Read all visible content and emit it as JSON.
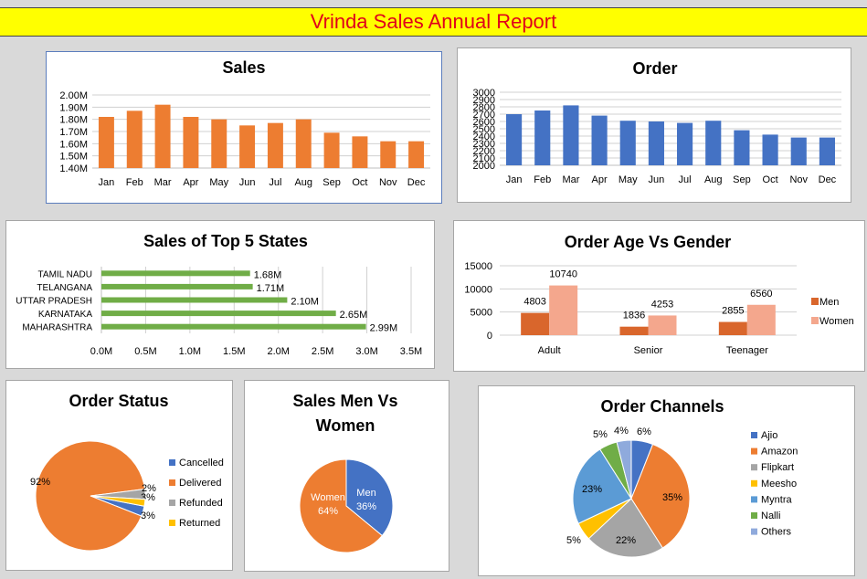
{
  "title": "Vrinda Sales Annual Report",
  "chart_data": [
    {
      "id": "sales",
      "type": "bar",
      "title": "Sales",
      "categories": [
        "Jan",
        "Feb",
        "Mar",
        "Apr",
        "May",
        "Jun",
        "Jul",
        "Aug",
        "Sep",
        "Oct",
        "Nov",
        "Dec"
      ],
      "values": [
        1.82,
        1.87,
        1.92,
        1.82,
        1.8,
        1.75,
        1.77,
        1.8,
        1.69,
        1.66,
        1.62,
        1.62
      ],
      "ylim": [
        1.4,
        2.0
      ],
      "yticks": [
        "1.40M",
        "1.50M",
        "1.60M",
        "1.70M",
        "1.80M",
        "1.90M",
        "2.00M"
      ],
      "color": "#ed7d31",
      "grid": true
    },
    {
      "id": "order",
      "type": "bar",
      "title": "Order",
      "categories": [
        "Jan",
        "Feb",
        "Mar",
        "Apr",
        "May",
        "Jun",
        "Jul",
        "Aug",
        "Sep",
        "Oct",
        "Nov",
        "Dec"
      ],
      "values": [
        2700,
        2750,
        2820,
        2680,
        2610,
        2600,
        2580,
        2610,
        2480,
        2420,
        2380,
        2380
      ],
      "ylim": [
        2000,
        3000
      ],
      "yticks": [
        "2000",
        "2100",
        "2200",
        "2300",
        "2400",
        "2500",
        "2600",
        "2700",
        "2800",
        "2900",
        "3000"
      ],
      "color": "#4472c4",
      "grid": true
    },
    {
      "id": "states",
      "type": "bar",
      "orientation": "horizontal",
      "title": "Sales of Top 5 States",
      "categories": [
        "TAMIL NADU",
        "TELANGANA",
        "UTTAR PRADESH",
        "KARNATAKA",
        "MAHARASHTRA"
      ],
      "values": [
        1.68,
        1.71,
        2.1,
        2.65,
        2.99
      ],
      "data_labels": [
        "1.68M",
        "1.71M",
        "2.10M",
        "2.65M",
        "2.99M"
      ],
      "xlim": [
        0,
        3.5
      ],
      "xticks": [
        "0.0M",
        "0.5M",
        "1.0M",
        "1.5M",
        "2.0M",
        "2.5M",
        "3.0M",
        "3.5M"
      ],
      "color": "#70ad47",
      "grid": true
    },
    {
      "id": "age_gender",
      "type": "bar",
      "title": "Order Age Vs Gender",
      "categories": [
        "Adult",
        "Senior",
        "Teenager"
      ],
      "series": [
        {
          "name": "Men",
          "values": [
            4803,
            1836,
            2855
          ],
          "color": "#d9662c"
        },
        {
          "name": "Women",
          "values": [
            10740,
            4253,
            6560
          ],
          "color": "#f4a78d"
        }
      ],
      "ylim": [
        0,
        15000
      ],
      "yticks": [
        "0",
        "5000",
        "10000",
        "15000"
      ],
      "legend": "right"
    },
    {
      "id": "order_status",
      "type": "pie",
      "title": "Order Status",
      "labels": [
        "Cancelled",
        "Delivered",
        "Refunded",
        "Returned"
      ],
      "values": [
        3,
        92,
        3,
        2
      ],
      "data_labels": [
        "3%",
        "92%",
        "3%",
        "2%"
      ],
      "colors": [
        "#4472c4",
        "#ed7d31",
        "#a5a5a5",
        "#ffc000"
      ],
      "legend": "right"
    },
    {
      "id": "sales_gender",
      "type": "pie",
      "title": "Sales Men Vs Women",
      "labels": [
        "Men",
        "Women"
      ],
      "values": [
        36,
        64
      ],
      "data_labels": [
        "Men 36%",
        "Women 64%"
      ],
      "colors": [
        "#4472c4",
        "#ed7d31"
      ]
    },
    {
      "id": "channels",
      "type": "pie",
      "title": "Order Channels",
      "labels": [
        "Ajio",
        "Amazon",
        "Flipkart",
        "Meesho",
        "Myntra",
        "Nalli",
        "Others"
      ],
      "values": [
        6,
        35,
        22,
        5,
        23,
        5,
        4
      ],
      "data_labels": [
        "6%",
        "35%",
        "22%",
        "5%",
        "23%",
        "5%",
        "4%"
      ],
      "colors": [
        "#4472c4",
        "#ed7d31",
        "#a5a5a5",
        "#ffc000",
        "#5b9bd5",
        "#70ad47",
        "#8faadc"
      ],
      "legend": "right"
    }
  ]
}
